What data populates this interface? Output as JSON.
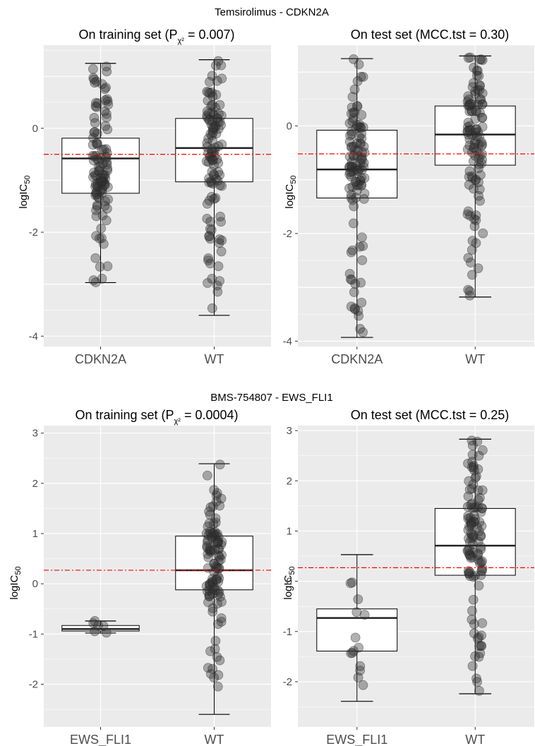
{
  "figure": {
    "sections": [
      {
        "title": "Temsirolimus - CDKN2A",
        "panels": [
          {
            "title_prefix": "On training set (P",
            "title_sub": "χ²",
            "title_suffix": " = 0.007)",
            "ylabel_main": "logIC",
            "ylabel_sub": "50",
            "ticks": [
              "-4",
              "-2",
              "0"
            ]
          },
          {
            "title": "On test set (MCC.tst = 0.30)",
            "ylabel_main": "logIC",
            "ylabel_sub": "50",
            "ticks": [
              "-4",
              "-2",
              "0"
            ]
          }
        ]
      },
      {
        "title": "BMS-754807 - EWS_FLI1",
        "panels": [
          {
            "title_prefix": "On training set (P",
            "title_sub": "χ²",
            "title_suffix": " = 0.0004)",
            "ylabel_main": "logIC",
            "ylabel_sub": "50",
            "ticks": [
              "-2",
              "-1",
              "0",
              "1",
              "2",
              "3"
            ]
          },
          {
            "title": "On test set (MCC.tst = 0.25)",
            "ylabel_main": "logIC",
            "ylabel_sub": "50",
            "ticks": [
              "-2",
              "-1",
              "0",
              "1",
              "2",
              "3"
            ]
          }
        ]
      }
    ]
  },
  "colors": {
    "panel_background": "#ebebeb",
    "grid": "#ffffff",
    "box_fill": "#ffffff",
    "box_line": "#000000",
    "points": "#333333",
    "threshold": "#ff0000",
    "axis_text": "#4d4d4d"
  },
  "chart_data": [
    {
      "type": "box",
      "ylim": [
        -4.2,
        1.6
      ],
      "grid": true,
      "categories": [
        "CDKN2A",
        "WT"
      ],
      "threshold": -0.5,
      "boxes": [
        {
          "category": "CDKN2A",
          "whisker_low": -2.97,
          "q1": -1.25,
          "median": -0.58,
          "q3": -0.19,
          "whisker_high": 1.25
        },
        {
          "category": "WT",
          "whisker_low": -3.6,
          "q1": -1.03,
          "median": -0.38,
          "q3": 0.19,
          "whisker_high": 1.32
        }
      ]
    },
    {
      "type": "box",
      "ylim": [
        -4.1,
        1.5
      ],
      "grid": true,
      "categories": [
        "CDKN2A",
        "WT"
      ],
      "threshold": -0.52,
      "boxes": [
        {
          "category": "CDKN2A",
          "whisker_low": -3.93,
          "q1": -1.34,
          "median": -0.81,
          "q3": -0.08,
          "whisker_high": 1.25
        },
        {
          "category": "WT",
          "whisker_low": -3.18,
          "q1": -0.73,
          "median": -0.16,
          "q3": 0.37,
          "whisker_high": 1.3
        }
      ]
    },
    {
      "type": "box",
      "ylim": [
        -2.85,
        3.15
      ],
      "grid": true,
      "categories": [
        "EWS_FLI1",
        "WT"
      ],
      "threshold": 0.27,
      "boxes": [
        {
          "category": "EWS_FLI1",
          "whisker_low": -0.98,
          "q1": -0.94,
          "median": -0.9,
          "q3": -0.83,
          "whisker_high": -0.74
        },
        {
          "category": "WT",
          "whisker_low": -2.6,
          "q1": -0.12,
          "median": 0.27,
          "q3": 0.95,
          "whisker_high": 2.39
        }
      ]
    },
    {
      "type": "box",
      "ylim": [
        -2.9,
        3.1
      ],
      "grid": true,
      "categories": [
        "EWS_FLI1",
        "WT"
      ],
      "threshold": 0.27,
      "boxes": [
        {
          "category": "EWS_FLI1",
          "whisker_low": -2.39,
          "q1": -1.39,
          "median": -0.73,
          "q3": -0.55,
          "whisker_high": 0.53
        },
        {
          "category": "WT",
          "whisker_low": -2.24,
          "q1": 0.12,
          "median": 0.71,
          "q3": 1.45,
          "whisker_high": 2.83
        }
      ]
    }
  ]
}
